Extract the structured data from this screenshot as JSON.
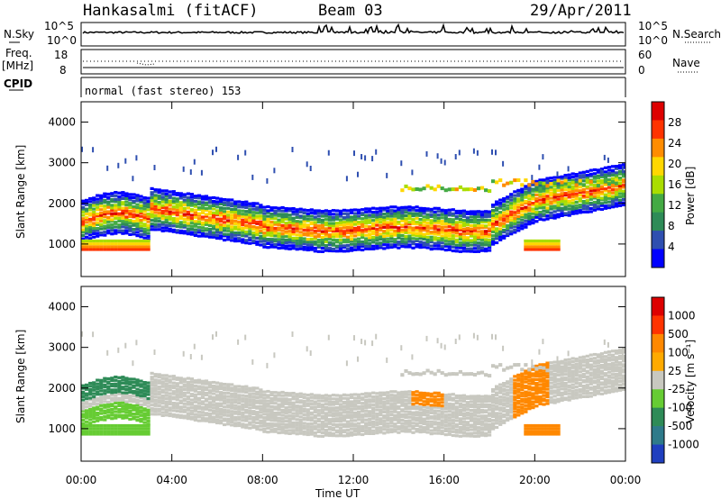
{
  "header": {
    "station": "Hankasalmi (fitACF)",
    "beam": "Beam 03",
    "date": "29/Apr/2011"
  },
  "noise_panel": {
    "left_label": "N.Sky",
    "right_label": "N.Search",
    "left_ticks": [
      "10^5",
      "10^0"
    ],
    "right_ticks": [
      "10^5",
      "10^0"
    ]
  },
  "freq_panel": {
    "left_label_1": "Freq.",
    "left_label_2": "[MHz]",
    "left_ticks": [
      "18",
      "8"
    ],
    "right_label": "Nave",
    "right_ticks": [
      "60",
      "0"
    ]
  },
  "cpid_panel": {
    "label": "CPID",
    "text": "normal (fast stereo) 153"
  },
  "chart_data": [
    {
      "type": "heatmap",
      "quantity": "Power",
      "ylabel": "Slant Range [km]",
      "yticks": [
        1000,
        2000,
        3000,
        4000
      ],
      "colorbar_label": "Power [dB]",
      "colorbar_ticks": [
        "4",
        "8",
        "12",
        "16",
        "20",
        "24",
        "28"
      ],
      "colors": [
        "#0000ff",
        "#2f4fb0",
        "#2e8b57",
        "#44aa44",
        "#aadd00",
        "#ffd700",
        "#ff8c00",
        "#ff3300",
        "#dd0000"
      ]
    },
    {
      "type": "heatmap",
      "quantity": "Velocity",
      "ylabel": "Slant Range [km]",
      "yticks": [
        1000,
        2000,
        3000,
        4000
      ],
      "xlabel": "Time UT",
      "xticks": [
        "00:00",
        "04:00",
        "08:00",
        "12:00",
        "16:00",
        "20:00",
        "00:00"
      ],
      "colorbar_label": "Velocity  [m s⁻¹]",
      "colorbar_ticks": [
        "1000",
        "500",
        "100",
        "25",
        "-25",
        "-100",
        "-500",
        "-1000"
      ],
      "colors": [
        "#1f3fbf",
        "#2e7a8a",
        "#2e8b57",
        "#66cc33",
        "#c8c8c0",
        "#ffaa00",
        "#ff8800",
        "#ff3300",
        "#dd0000"
      ]
    }
  ]
}
